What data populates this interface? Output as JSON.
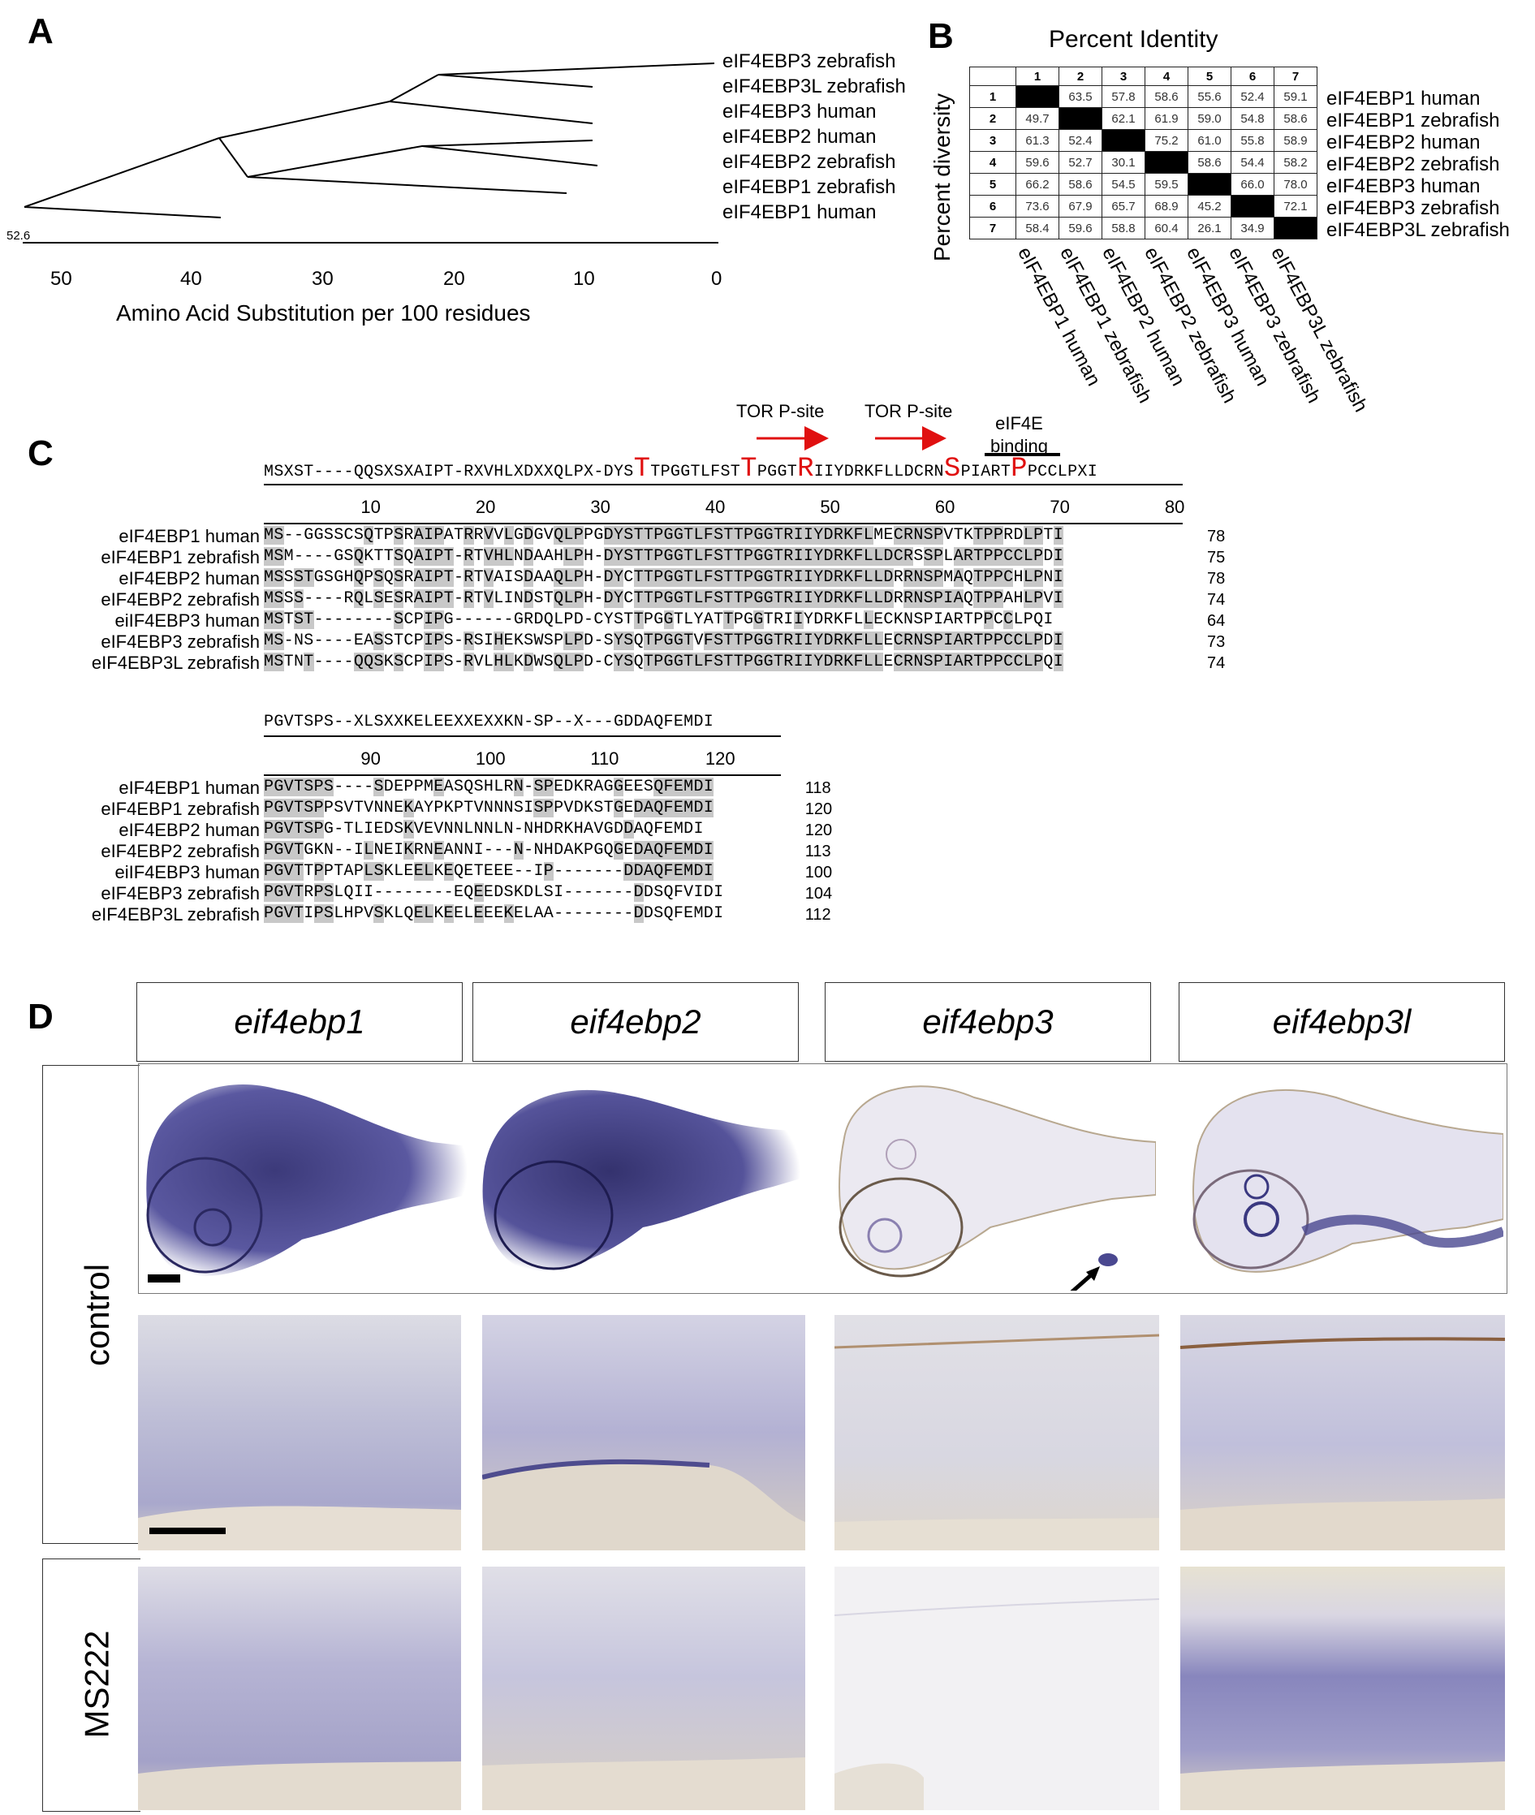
{
  "panelA": {
    "letter": "A",
    "labels": [
      "eIF4EBP3 zebrafish",
      "eIF4EBP3L zebrafish",
      "eIF4EBP3 human",
      "eIF4EBP2 human",
      "eIF4EBP2 zebrafish",
      "eIF4EBP1 zebrafish",
      "eIF4EBP1 human"
    ],
    "scale_value": "52.6",
    "ticks": [
      "50",
      "40",
      "30",
      "20",
      "10",
      "0"
    ],
    "xlabel": "Amino Acid Substitution per 100 residues"
  },
  "panelB": {
    "letter": "B",
    "title": "Percent Identity",
    "ylabel": "Percent diversity",
    "cols": [
      "1",
      "2",
      "3",
      "4",
      "5",
      "6",
      "7"
    ],
    "rows": [
      {
        "n": "1",
        "cells": [
          "",
          "63.5",
          "57.8",
          "58.6",
          "55.6",
          "52.4",
          "59.1"
        ],
        "label": "eIF4EBP1 human"
      },
      {
        "n": "2",
        "cells": [
          "49.7",
          "",
          "62.1",
          "61.9",
          "59.0",
          "54.8",
          "58.6"
        ],
        "label": "eIF4EBP1 zebrafish"
      },
      {
        "n": "3",
        "cells": [
          "61.3",
          "52.4",
          "",
          "75.2",
          "61.0",
          "55.8",
          "58.9"
        ],
        "label": "eIF4EBP2 human"
      },
      {
        "n": "4",
        "cells": [
          "59.6",
          "52.7",
          "30.1",
          "",
          "58.6",
          "54.4",
          "58.2"
        ],
        "label": "eIF4EBP2 zebrafish"
      },
      {
        "n": "5",
        "cells": [
          "66.2",
          "58.6",
          "54.5",
          "59.5",
          "",
          "66.0",
          "78.0"
        ],
        "label": "eIF4EBP3 human"
      },
      {
        "n": "6",
        "cells": [
          "73.6",
          "67.9",
          "65.7",
          "68.9",
          "45.2",
          "",
          "72.1"
        ],
        "label": "eIF4EBP3 zebrafish"
      },
      {
        "n": "7",
        "cells": [
          "58.4",
          "59.6",
          "58.8",
          "60.4",
          "26.1",
          "34.9",
          ""
        ],
        "label": "eIF4EBP3L zebrafish"
      }
    ],
    "col_labels": [
      "eIF4EBP1 human",
      "eIF4EBP1 zebrafish",
      "eIF4EBP2 human",
      "eIF4EBP2 zebrafish",
      "eIF4EBP3  human",
      "eIF4EBP3 zebrafish",
      "eIF4EBP3L zebrafish"
    ]
  },
  "panelC": {
    "letter": "C",
    "ann1": "TOR P-site",
    "ann2": "TOR P-site",
    "ann3a": "eIF4E",
    "ann3b": "binding",
    "consensus1": "MSXST----QQSXSXAIPT-RXVHLXDXXQLPX-DYSTTPGGTLFSTTPGGTRIIYDRKFLLDCRNSPIARTPPCCLPXI",
    "ruler1": [
      "10",
      "20",
      "30",
      "40",
      "50",
      "60",
      "70",
      "80"
    ],
    "block1": [
      {
        "name": "eIF4EBP1 human",
        "seq": "MS--GGSSCSQTPSRAIPATRRVVLGDGVQLPPGDYSTTPGGTLFSTTPGGTRIIYDRKFLMECRNSPVTKTPPRDLPTI",
        "end": "78"
      },
      {
        "name": "eIF4EBP1 zebrafish",
        "seq": "MSM----GSQKTTSQAIPT-RTVHLNDAAHLPH-DYSTTPGGTLFSTTPGGTRIIYDRKFLLDCRSSPLARTPPCCLPDI",
        "end": "75"
      },
      {
        "name": "eIF4EBP2 human",
        "seq": "MSSSTGSGHQPSQSRAIPT-RTVAISDAAQLPH-DYCTTPGGTLFSTTPGGTRIIYDRKFLLDRRNSPMAQTPPCHLPNI",
        "end": "78"
      },
      {
        "name": "eIF4EBP2 zebrafish",
        "seq": "MSSS----RQLSESRAIPT-RTVLINDSTQLPH-DYCTTPGGTLFSTTPGGTRIIYDRKFLLDRRNSPIAQTPPAHLPVI",
        "end": "74"
      },
      {
        "name": "eiIF4EBP3  human",
        "seq": "MSTST--------SCPIPG------GRDQLPD-CYSTTPGGTLYATTPGGTRIIYDRKFLLECKNSPIARTPPCCLPQI",
        "end": "64"
      },
      {
        "name": "eIF4EBP3 zebrafish",
        "seq": "MS-NS----EASSTCPIPS-RSIHEKSWSPLPD-SYSQTPGGTVFSTTPGGTRIIYDRKFLLECRNSPIARTPPCCLPDI",
        "end": "73"
      },
      {
        "name": "eIF4EBP3L zebrafish",
        "seq": "MSTNT----QQSKSCPIPS-RVLHLKDWSQLPD-CYSQTPGGTLFSTTPGGTRIIYDRKFLLECRNSPIARTPPCCLPQI",
        "end": "74"
      }
    ],
    "consensus2": "PGVTSPS--XLSXXKELEEXXEXXKN-SP--X---GDDAQFEMDI",
    "ruler2": [
      "90",
      "100",
      "110",
      "120"
    ],
    "block2": [
      {
        "name": "eIF4EBP1 human",
        "seq": "PGVTSPS----SDEPPMEASQSHLRN-SPEDKRAGGEESQFEMDI",
        "end": "118"
      },
      {
        "name": "eIF4EBP1 zebrafish",
        "seq": "PGVTSPPSVTVNNEKAYPKPTVNNNSISPPVDKSTGEDAQFEMDI",
        "end": "120"
      },
      {
        "name": "eIF4EBP2 human",
        "seq": "PGVTSPG-TLIEDSKVEVNNLNNLN-NHDRKHAVGDDAQFEMDI",
        "end": "120"
      },
      {
        "name": "eIF4EBP2 zebrafish",
        "seq": "PGVTGKN--ILNEIKRNEANNI---N-NHDAKPGQGEDAQFEMDI",
        "end": "113"
      },
      {
        "name": "eiIF4EBP3  human",
        "seq": "PGVTTPPTAPLSKLEELKEQETEEE--IP-------DDAQFEMDI",
        "end": "100"
      },
      {
        "name": "eIF4EBP3 zebrafish",
        "seq": "PGVTRPSLQII--------EQEEDSKDLSI-------DDSQFVIDI",
        "end": "104"
      },
      {
        "name": "eIF4EBP3L zebrafish",
        "seq": "PGVTIPSLHPVSKLQELKEELEEEKELAA--------DDSQFEMDI",
        "end": "112"
      }
    ]
  },
  "panelD": {
    "letter": "D",
    "genes": [
      "eif4ebp1",
      "eif4ebp2",
      "eif4ebp3",
      "eif4ebp3l"
    ],
    "conditions": [
      "control",
      "MS222"
    ]
  }
}
